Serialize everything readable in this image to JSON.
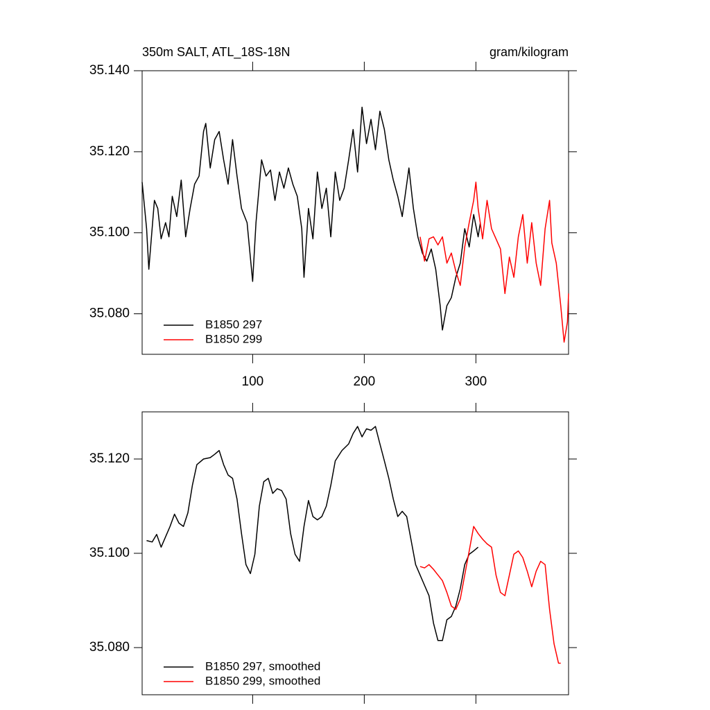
{
  "chart_data": [
    {
      "type": "line",
      "title": "350m SALT, ATL_18S-18N",
      "right_title": "gram/kilogram",
      "xlim": [
        1,
        383
      ],
      "xticks": [
        100,
        200,
        300
      ],
      "xtick_labels": true,
      "ylim": [
        35.07,
        35.14
      ],
      "yticks": [
        {
          "value": 35.08,
          "label": "35.080"
        },
        {
          "value": 35.1,
          "label": "35.100"
        },
        {
          "value": 35.12,
          "label": "35.120"
        },
        {
          "value": 35.14,
          "label": "35.140"
        }
      ],
      "series": [
        {
          "name": "B1850 297",
          "color": "#000000",
          "x": [
            1,
            5,
            7,
            12,
            15,
            18,
            22,
            25,
            28,
            32,
            36,
            40,
            44,
            48,
            52,
            56,
            58,
            62,
            66,
            70,
            74,
            78,
            82,
            86,
            90,
            95,
            100,
            103,
            108,
            112,
            116,
            120,
            124,
            128,
            132,
            136,
            140,
            144,
            146,
            150,
            154,
            158,
            162,
            166,
            170,
            174,
            178,
            182,
            186,
            190,
            194,
            198,
            202,
            206,
            210,
            214,
            218,
            222,
            226,
            230,
            234,
            240,
            244,
            248,
            252,
            256,
            260,
            264,
            268,
            270,
            274,
            278,
            282,
            286,
            290,
            294,
            298,
            302,
            304
          ],
          "values": [
            35.1125,
            35.101,
            35.091,
            35.108,
            35.106,
            35.0985,
            35.1025,
            35.099,
            35.109,
            35.104,
            35.113,
            35.099,
            35.106,
            35.112,
            35.114,
            35.125,
            35.127,
            35.116,
            35.123,
            35.125,
            35.118,
            35.112,
            35.123,
            35.114,
            35.106,
            35.1025,
            35.088,
            35.1025,
            35.118,
            35.114,
            35.1155,
            35.108,
            35.115,
            35.111,
            35.116,
            35.112,
            35.109,
            35.101,
            35.089,
            35.106,
            35.0985,
            35.115,
            35.106,
            35.111,
            35.099,
            35.115,
            35.108,
            35.111,
            35.118,
            35.1255,
            35.115,
            35.131,
            35.122,
            35.128,
            35.1205,
            35.13,
            35.1255,
            35.118,
            35.113,
            35.109,
            35.104,
            35.116,
            35.106,
            35.099,
            35.095,
            35.093,
            35.096,
            35.091,
            35.082,
            35.076,
            35.082,
            35.084,
            35.089,
            35.0925,
            35.101,
            35.0965,
            35.1045,
            35.099,
            35.1025
          ]
        },
        {
          "name": "B1850 299",
          "color": "#ff0000",
          "x": [
            250,
            254,
            258,
            262,
            266,
            270,
            274,
            278,
            282,
            286,
            290,
            294,
            298,
            300,
            302,
            306,
            310,
            314,
            318,
            322,
            326,
            330,
            334,
            338,
            342,
            346,
            350,
            354,
            358,
            362,
            366,
            368,
            372,
            376,
            379,
            382,
            383
          ],
          "values": [
            35.099,
            35.093,
            35.0985,
            35.099,
            35.097,
            35.099,
            35.0925,
            35.095,
            35.0905,
            35.087,
            35.0965,
            35.1025,
            35.108,
            35.1125,
            35.106,
            35.0985,
            35.108,
            35.101,
            35.0985,
            35.096,
            35.085,
            35.094,
            35.089,
            35.099,
            35.1045,
            35.0925,
            35.1025,
            35.0925,
            35.087,
            35.101,
            35.108,
            35.0975,
            35.0925,
            35.082,
            35.073,
            35.078,
            35.085
          ]
        }
      ]
    },
    {
      "type": "line",
      "xlim": [
        1,
        383
      ],
      "xticks": [
        100,
        200,
        300
      ],
      "xtick_labels": false,
      "ylim": [
        35.07,
        35.13
      ],
      "yticks": [
        {
          "value": 35.08,
          "label": "35.080"
        },
        {
          "value": 35.1,
          "label": "35.100"
        },
        {
          "value": 35.12,
          "label": "35.120"
        }
      ],
      "series": [
        {
          "name": "B1850 297, smoothed",
          "color": "#000000",
          "x": [
            5,
            10,
            14,
            18,
            22,
            26,
            30,
            34,
            38,
            42,
            46,
            50,
            56,
            62,
            66,
            70,
            74,
            78,
            82,
            86,
            90,
            94,
            98,
            102,
            106,
            110,
            114,
            118,
            122,
            126,
            130,
            134,
            138,
            142,
            146,
            150,
            154,
            158,
            162,
            166,
            170,
            174,
            180,
            186,
            190,
            194,
            198,
            202,
            206,
            210,
            214,
            218,
            222,
            226,
            230,
            234,
            238,
            242,
            246,
            250,
            254,
            258,
            262,
            266,
            270,
            274,
            278,
            282,
            286,
            290,
            294,
            298,
            302
          ],
          "values": [
            35.1027,
            35.1024,
            35.104,
            35.1013,
            35.1035,
            35.1057,
            35.1083,
            35.1064,
            35.1057,
            35.1086,
            35.1144,
            35.1188,
            35.12,
            35.1203,
            35.121,
            35.1218,
            35.1188,
            35.1166,
            35.1159,
            35.1115,
            35.1042,
            35.0976,
            35.0957,
            35.0998,
            35.11,
            35.1152,
            35.1159,
            35.1127,
            35.1137,
            35.1133,
            35.1115,
            35.1042,
            35.0998,
            35.0983,
            35.1057,
            35.1112,
            35.1078,
            35.1071,
            35.1078,
            35.11,
            35.1144,
            35.1196,
            35.1218,
            35.1232,
            35.1254,
            35.1269,
            35.1247,
            35.1264,
            35.1261,
            35.1269,
            35.1232,
            35.1196,
            35.1159,
            35.1115,
            35.1078,
            35.1089,
            35.1078,
            35.1027,
            35.0976,
            35.0954,
            35.0932,
            35.091,
            35.0852,
            35.0815,
            35.0815,
            35.0859,
            35.0866,
            35.0888,
            35.0925,
            35.0976,
            35.0998,
            35.1005,
            35.1013
          ]
        },
        {
          "name": "B1850 299, smoothed",
          "color": "#ff0000",
          "x": [
            250,
            254,
            258,
            262,
            266,
            270,
            274,
            278,
            282,
            286,
            290,
            294,
            298,
            302,
            306,
            310,
            314,
            318,
            322,
            326,
            330,
            334,
            338,
            342,
            346,
            350,
            354,
            358,
            362,
            366,
            370,
            374,
            376
          ],
          "values": [
            35.0972,
            35.0969,
            35.0976,
            35.0966,
            35.0954,
            35.0942,
            35.0917,
            35.0888,
            35.0881,
            35.0903,
            35.0954,
            35.1005,
            35.1057,
            35.1042,
            35.103,
            35.102,
            35.1013,
            35.0954,
            35.0917,
            35.091,
            35.0954,
            35.0998,
            35.1005,
            35.0991,
            35.0962,
            35.0929,
            35.0962,
            35.0983,
            35.0976,
            35.0881,
            35.0808,
            35.0767,
            35.0767
          ]
        }
      ]
    }
  ]
}
